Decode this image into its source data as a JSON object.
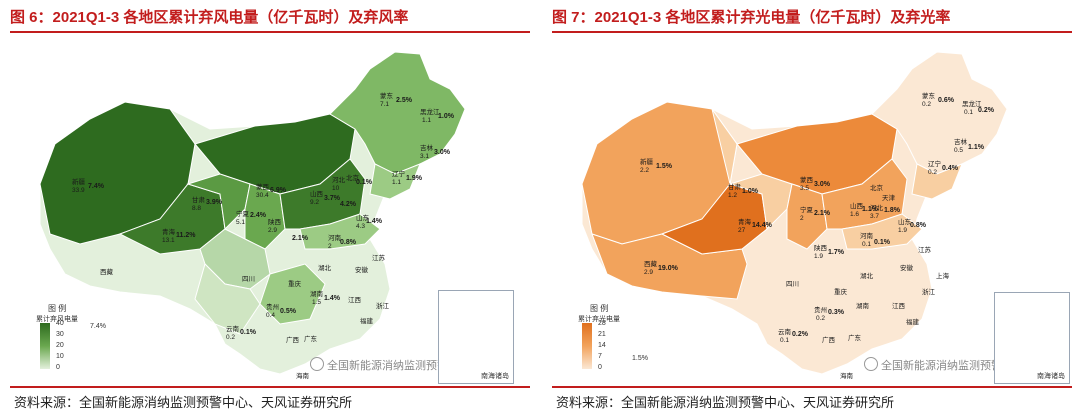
{
  "left": {
    "title": "图 6：2021Q1-3 各地区累计弃风电量（亿千瓦时）及弃风率",
    "legend_title": "图  例",
    "legend_sub": "累计弃风电量",
    "legend_ticks": [
      "40",
      "30",
      "20",
      "10",
      "0"
    ],
    "legend_sample": "7.4%",
    "watermark": "全国新能源消纳监测预警中心",
    "inset_label": "南海诸岛",
    "source": "资料来源：全国新能源消纳监测预警中心、天风证券研究所",
    "colors": {
      "dark": "#2e6b1f",
      "mid": "#6aa84f",
      "light": "#b6d7a8",
      "pale": "#e3f0dc"
    },
    "labels": {
      "xinjiang_name": "新疆",
      "xinjiang_val": "33.9",
      "xinjiang_rate": "7.4%",
      "gansu_name": "甘肃",
      "gansu_val": "8.8",
      "gansu_rate": "3.9%",
      "qinghai_name": "青海",
      "qinghai_val": "13.1",
      "qinghai_rate": "11.2%",
      "nmg_name": "蒙西",
      "nmg_val": "30.4",
      "nmg_rate": "6.9%",
      "mengdong_name": "蒙东",
      "mengdong_val": "7.1",
      "mengdong_rate": "2.5%",
      "hlj_name": "黑龙江",
      "hlj_val": "1.1",
      "hlj_rate": "1.0%",
      "jilin_name": "吉林",
      "jilin_val": "3.1",
      "jilin_rate": "3.0%",
      "liaoning_name": "辽宁",
      "liaoning_val": "1.1",
      "liaoning_rate": "1.9%",
      "ningxia_name": "宁夏",
      "ningxia_val": "5.1",
      "ningxia_rate": "2.4%",
      "shaanxi_name": "陕西",
      "shaanxi_val": "2.9",
      "shanxi_name": "山西",
      "shanxi_val": "9.2",
      "shanxi_rate": "3.7%",
      "hebei_name": "河北",
      "hebei_val": "10",
      "hebei_rate": "4.2%",
      "beijing_name": "北京",
      "beijing_rate": "0.1%",
      "shandong_name": "山东",
      "shandong_val": "4.3",
      "shandong_rate": "1.4%",
      "henan_name": "河南",
      "henan_val": "2",
      "henan_rate": "0.8%",
      "sichuan_rate": "2.1%",
      "hunan_name": "湖南",
      "hunan_val": "1.5",
      "hunan_rate": "1.4%",
      "guizhou_name": "贵州",
      "guizhou_val": "0.4",
      "guizhou_rate": "0.5%",
      "yunnan_name": "云南",
      "yunnan_val": "0.2",
      "yunnan_rate": "0.1%",
      "xizang": "西藏",
      "sichuan": "四川",
      "chongqing": "重庆",
      "hubei": "湖北",
      "anhui": "安徽",
      "jiangsu": "江苏",
      "jiangxi": "江西",
      "zhejiang": "浙江",
      "fujian": "福建",
      "guangxi": "广西",
      "guangdong": "广东",
      "hainan": "海南"
    }
  },
  "right": {
    "title": "图 7：2021Q1-3 各地区累计弃光电量（亿千瓦时）及弃光率",
    "legend_title": "图  例",
    "legend_sub": "累计弃光电量",
    "legend_ticks": [
      "28",
      "21",
      "14",
      "7",
      "0"
    ],
    "legend_sample": "1.5%",
    "watermark": "全国新能源消纳监测预警中心",
    "inset_label": "南海诸岛",
    "source": "资料来源：全国新能源消纳监测预警中心、天风证券研究所",
    "colors": {
      "dark": "#e0701e",
      "mid": "#f2a35c",
      "light": "#f8cfa2",
      "pale": "#fbe8d4"
    },
    "labels": {
      "xinjiang_name": "新疆",
      "xinjiang_val": "2.2",
      "xinjiang_rate": "1.5%",
      "gansu_name": "甘肃",
      "gansu_val": "1.2",
      "gansu_rate": "1.0%",
      "qinghai_name": "青海",
      "qinghai_val": "27",
      "qinghai_rate": "14.4%",
      "xizang_name": "西藏",
      "xizang_val": "2.9",
      "xizang_rate": "19.0%",
      "nmg_name": "蒙西",
      "nmg_val": "3.5",
      "nmg_rate": "3.0%",
      "mengdong_name": "蒙东",
      "mengdong_val": "0.2",
      "mengdong_rate": "0.6%",
      "hlj_name": "黑龙江",
      "hlj_val": "0.1",
      "hlj_rate": "0.2%",
      "jilin_name": "吉林",
      "jilin_val": "0.5",
      "jilin_rate": "1.1%",
      "liaoning_name": "辽宁",
      "liaoning_val": "0.2",
      "liaoning_rate": "0.4%",
      "ningxia_name": "宁夏",
      "ningxia_val": "2",
      "ningxia_rate": "2.1%",
      "shanxi_name": "山西",
      "shanxi_val": "1.6",
      "shanxi_rate": "1.1%",
      "hebei_name": "河北",
      "hebei_val": "3.7",
      "hebei_rate": "1.8%",
      "beijing_name": "北京",
      "tianjin_name": "天津",
      "shandong_name": "山东",
      "shandong_val": "1.9",
      "shandong_rate": "0.8%",
      "henan_name": "河南",
      "henan_val": "0.1",
      "henan_rate": "0.1%",
      "shaanxi_name": "陕西",
      "shaanxi_val": "1.9",
      "shaanxi_rate": "1.7%",
      "guizhou_name": "贵州",
      "guizhou_val": "0.2",
      "guizhou_rate": "0.3%",
      "yunnan_name": "云南",
      "yunnan_val": "0.1",
      "yunnan_rate": "0.2%",
      "sichuan": "四川",
      "chongqing": "重庆",
      "hubei": "湖北",
      "hunan": "湖南",
      "anhui": "安徽",
      "jiangsu": "江苏",
      "shanghai": "上海",
      "jiangxi": "江西",
      "zhejiang": "浙江",
      "fujian": "福建",
      "guangxi": "广西",
      "guangdong": "广东",
      "hainan": "海南"
    }
  }
}
